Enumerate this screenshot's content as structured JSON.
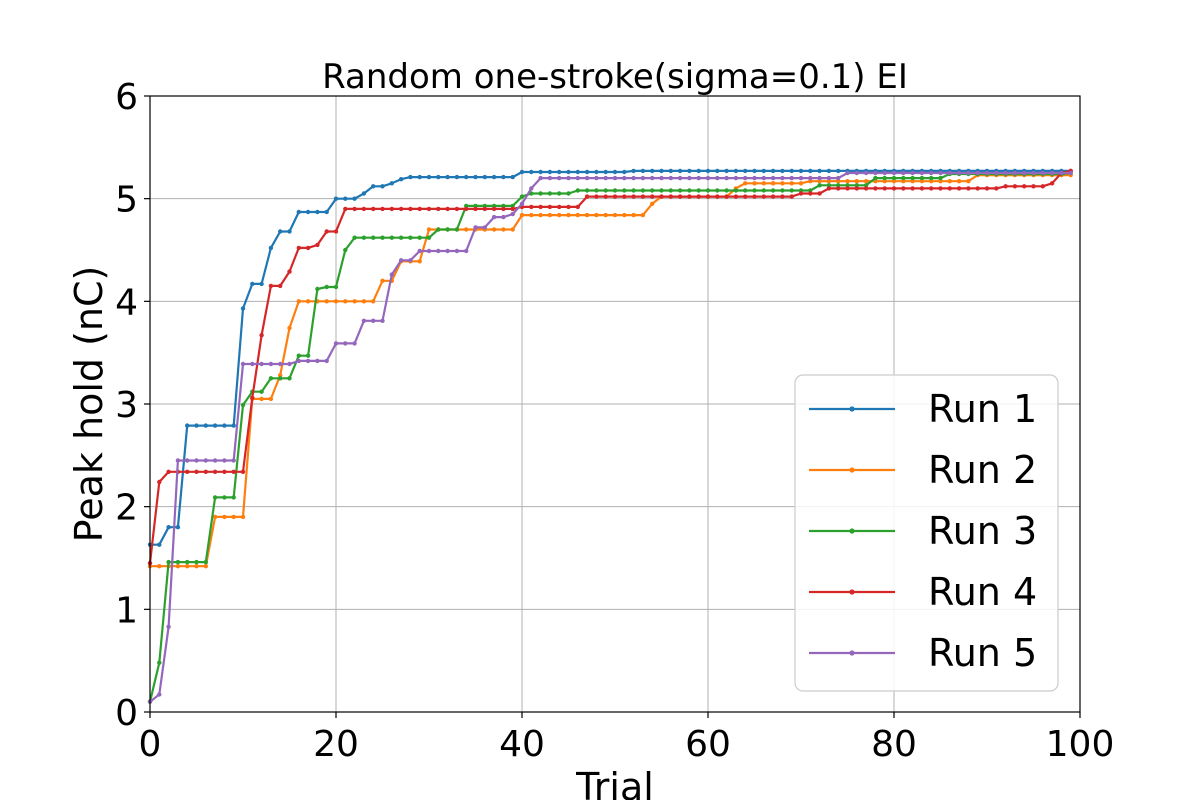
{
  "chart_data": {
    "type": "line",
    "title": "Random one-stroke(sigma=0.1) EI",
    "xlabel": "Trial",
    "ylabel": "Peak hold (nC)",
    "xlim": [
      0,
      100
    ],
    "ylim": [
      0,
      6
    ],
    "xticks": [
      0,
      20,
      40,
      60,
      80,
      100
    ],
    "yticks": [
      0,
      1,
      2,
      3,
      4,
      5,
      6
    ],
    "xtick_labels": [
      "0",
      "20",
      "40",
      "60",
      "80",
      "100"
    ],
    "ytick_labels": [
      "0",
      "1",
      "2",
      "3",
      "4",
      "5",
      "6"
    ],
    "grid": true,
    "legend_position": "lower-right",
    "series": [
      {
        "name": "Run 1",
        "color": "#1f77b4",
        "breakpoints": [
          [
            0,
            1.63
          ],
          [
            2,
            1.8
          ],
          [
            4,
            2.79
          ],
          [
            10,
            3.93
          ],
          [
            11,
            4.17
          ],
          [
            13,
            4.52
          ],
          [
            14,
            4.68
          ],
          [
            16,
            4.87
          ],
          [
            20,
            5.0
          ],
          [
            23,
            5.05
          ],
          [
            24,
            5.12
          ],
          [
            26,
            5.15
          ],
          [
            27,
            5.19
          ],
          [
            28,
            5.21
          ],
          [
            40,
            5.26
          ],
          [
            52,
            5.27
          ],
          [
            99,
            5.27
          ]
        ]
      },
      {
        "name": "Run 2",
        "color": "#ff7f0e",
        "breakpoints": [
          [
            0,
            1.42
          ],
          [
            7,
            1.9
          ],
          [
            11,
            3.05
          ],
          [
            14,
            3.28
          ],
          [
            15,
            3.74
          ],
          [
            16,
            4.0
          ],
          [
            25,
            4.2
          ],
          [
            27,
            4.39
          ],
          [
            30,
            4.7
          ],
          [
            40,
            4.84
          ],
          [
            54,
            4.95
          ],
          [
            55,
            5.02
          ],
          [
            63,
            5.1
          ],
          [
            64,
            5.15
          ],
          [
            71,
            5.17
          ],
          [
            89,
            5.23
          ],
          [
            99,
            5.23
          ]
        ]
      },
      {
        "name": "Run 3",
        "color": "#2ca02c",
        "breakpoints": [
          [
            0,
            0.1
          ],
          [
            1,
            0.48
          ],
          [
            2,
            1.46
          ],
          [
            7,
            2.09
          ],
          [
            10,
            2.99
          ],
          [
            11,
            3.12
          ],
          [
            13,
            3.25
          ],
          [
            16,
            3.47
          ],
          [
            18,
            4.12
          ],
          [
            19,
            4.14
          ],
          [
            21,
            4.5
          ],
          [
            22,
            4.62
          ],
          [
            30,
            4.62
          ],
          [
            31,
            4.7
          ],
          [
            34,
            4.93
          ],
          [
            40,
            5.02
          ],
          [
            41,
            5.05
          ],
          [
            46,
            5.08
          ],
          [
            72,
            5.13
          ],
          [
            78,
            5.2
          ],
          [
            86,
            5.24
          ],
          [
            99,
            5.25
          ]
        ]
      },
      {
        "name": "Run 4",
        "color": "#d62728",
        "breakpoints": [
          [
            0,
            1.45
          ],
          [
            1,
            2.24
          ],
          [
            2,
            2.34
          ],
          [
            11,
            3.06
          ],
          [
            12,
            3.67
          ],
          [
            13,
            4.15
          ],
          [
            15,
            4.29
          ],
          [
            16,
            4.52
          ],
          [
            18,
            4.55
          ],
          [
            19,
            4.68
          ],
          [
            21,
            4.9
          ],
          [
            40,
            4.92
          ],
          [
            47,
            5.02
          ],
          [
            70,
            5.05
          ],
          [
            73,
            5.1
          ],
          [
            92,
            5.12
          ],
          [
            97,
            5.15
          ],
          [
            98,
            5.25
          ],
          [
            99,
            5.27
          ]
        ]
      },
      {
        "name": "Run 5",
        "color": "#9467bd",
        "breakpoints": [
          [
            0,
            0.1
          ],
          [
            1,
            0.17
          ],
          [
            2,
            0.83
          ],
          [
            3,
            2.45
          ],
          [
            10,
            3.39
          ],
          [
            16,
            3.42
          ],
          [
            20,
            3.59
          ],
          [
            23,
            3.81
          ],
          [
            26,
            4.26
          ],
          [
            27,
            4.4
          ],
          [
            29,
            4.49
          ],
          [
            35,
            4.72
          ],
          [
            37,
            4.82
          ],
          [
            39,
            4.85
          ],
          [
            40,
            4.95
          ],
          [
            41,
            5.1
          ],
          [
            42,
            5.2
          ],
          [
            75,
            5.25
          ],
          [
            99,
            5.25
          ]
        ]
      }
    ]
  }
}
